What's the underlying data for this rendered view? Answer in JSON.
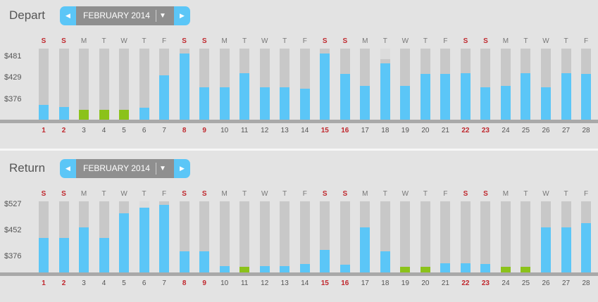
{
  "dow_labels": [
    "S",
    "S",
    "M",
    "T",
    "W",
    "T",
    "F",
    "S",
    "S",
    "M",
    "T",
    "W",
    "T",
    "F",
    "S",
    "S",
    "M",
    "T",
    "W",
    "T",
    "F",
    "S",
    "S",
    "M",
    "T",
    "W",
    "T",
    "F"
  ],
  "dates": [
    "1",
    "2",
    "3",
    "4",
    "5",
    "6",
    "7",
    "8",
    "9",
    "10",
    "11",
    "12",
    "13",
    "14",
    "15",
    "16",
    "17",
    "18",
    "19",
    "20",
    "21",
    "22",
    "23",
    "24",
    "25",
    "26",
    "27",
    "28"
  ],
  "weekend_index": [
    0,
    1,
    7,
    8,
    14,
    15,
    21,
    22
  ],
  "colors": {
    "fare": "#5bc6f7",
    "lowest_fare": "#8bc21a",
    "unavailable": "#c8c8c8",
    "weekend_text": "#c0272d"
  },
  "depart": {
    "title": "Depart",
    "month_label": "FEBRUARY 2014",
    "prev_icon": "◀",
    "next_icon": "▶",
    "dropdown_icon": "▼",
    "yticks": [
      "$481",
      "$429",
      "$376"
    ]
  },
  "return": {
    "title": "Return",
    "month_label": "FEBRUARY 2014",
    "prev_icon": "◀",
    "next_icon": "▶",
    "dropdown_icon": "▼",
    "yticks": [
      "$527",
      "$452",
      "$376"
    ]
  },
  "chart_data": [
    {
      "type": "bar",
      "title": "Depart",
      "categories": [
        "1",
        "2",
        "3",
        "4",
        "5",
        "6",
        "7",
        "8",
        "9",
        "10",
        "11",
        "12",
        "13",
        "14",
        "15",
        "16",
        "17",
        "18",
        "19",
        "20",
        "21",
        "22",
        "23",
        "24",
        "25",
        "26",
        "27",
        "28"
      ],
      "values": [
        365,
        359,
        352,
        352,
        352,
        357,
        436,
        490,
        408,
        407,
        441,
        407,
        407,
        404,
        490,
        440,
        411,
        466,
        411,
        440,
        440,
        441,
        408,
        410,
        442,
        408,
        442,
        440
      ],
      "lowest": [
        false,
        false,
        true,
        true,
        true,
        false,
        false,
        false,
        false,
        false,
        false,
        false,
        false,
        false,
        false,
        false,
        false,
        false,
        false,
        false,
        false,
        false,
        false,
        false,
        false,
        false,
        false,
        false
      ],
      "range_max": [
        null,
        null,
        null,
        null,
        null,
        null,
        null,
        null,
        null,
        null,
        null,
        null,
        null,
        null,
        null,
        null,
        null,
        476,
        null,
        null,
        null,
        null,
        null,
        null,
        null,
        null,
        null,
        null
      ],
      "yticks": [
        481,
        429,
        376
      ],
      "ylim": [
        328,
        502
      ]
    },
    {
      "type": "bar",
      "title": "Return",
      "categories": [
        "1",
        "2",
        "3",
        "4",
        "5",
        "6",
        "7",
        "8",
        "9",
        "10",
        "11",
        "12",
        "13",
        "14",
        "15",
        "16",
        "17",
        "18",
        "19",
        "20",
        "21",
        "22",
        "23",
        "24",
        "25",
        "26",
        "27",
        "28"
      ],
      "values": [
        431,
        431,
        462,
        431,
        502,
        520,
        528,
        392,
        392,
        348,
        346,
        348,
        348,
        354,
        395,
        352,
        462,
        391,
        346,
        346,
        356,
        356,
        354,
        346,
        346,
        462,
        462,
        474
      ],
      "lowest": [
        false,
        false,
        false,
        false,
        false,
        false,
        false,
        false,
        false,
        false,
        true,
        false,
        false,
        false,
        false,
        false,
        false,
        false,
        true,
        true,
        false,
        false,
        false,
        true,
        true,
        false,
        false,
        false
      ],
      "range_max": [
        null,
        null,
        null,
        null,
        null,
        520,
        null,
        null,
        null,
        null,
        null,
        null,
        null,
        null,
        null,
        null,
        null,
        null,
        null,
        null,
        null,
        null,
        null,
        null,
        null,
        null,
        null,
        null
      ],
      "yticks": [
        527,
        452,
        376
      ],
      "ylim": [
        330,
        538
      ]
    }
  ]
}
